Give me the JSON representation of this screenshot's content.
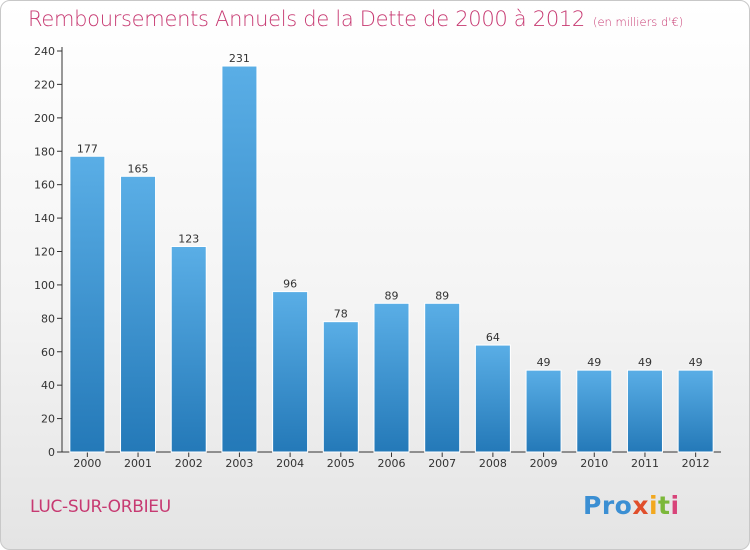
{
  "header": {
    "title": "Remboursements Annuels de la Dette de 2000 à 2012",
    "unit": "(en milliers d'€)"
  },
  "footer": {
    "commune": "LUC-SUR-ORBIEU",
    "logo": [
      "Pro",
      "x",
      "i",
      "t",
      "i"
    ]
  },
  "colors": {
    "bar_top": "#5aaee6",
    "bar_bottom": "#2479b8",
    "title": "#c73a72"
  },
  "chart_data": {
    "type": "bar",
    "title": "Remboursements Annuels de la Dette de 2000 à 2012",
    "categories": [
      "2000",
      "2001",
      "2002",
      "2003",
      "2004",
      "2005",
      "2006",
      "2007",
      "2008",
      "2009",
      "2010",
      "2011",
      "2012"
    ],
    "values": [
      177,
      165,
      123,
      231,
      96,
      78,
      89,
      89,
      64,
      49,
      49,
      49,
      49
    ],
    "ylim": [
      0,
      240
    ],
    "yticks": [
      0,
      20,
      40,
      60,
      80,
      100,
      120,
      140,
      160,
      180,
      200,
      220,
      240
    ],
    "grid": false,
    "legend": "none"
  }
}
